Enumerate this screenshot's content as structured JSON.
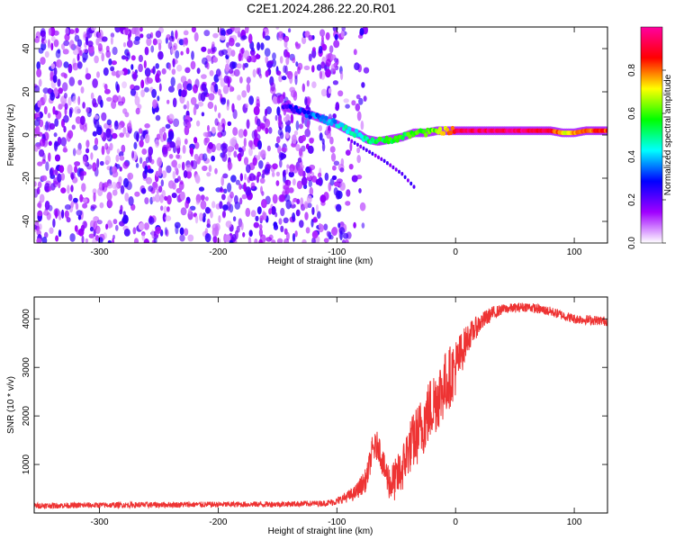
{
  "figure": {
    "title": "C2E1.2024.286.22.20.R01"
  },
  "chart_data": [
    {
      "type": "heatmap",
      "xlabel": "Height of straight line (km)",
      "ylabel": "Frequency (Hz)",
      "xlim": [
        -355,
        128
      ],
      "ylim": [
        -50,
        50
      ],
      "x_ticks": [
        -300,
        -200,
        -100,
        0,
        100
      ],
      "y_ticks": [
        -40,
        -20,
        0,
        20,
        40
      ],
      "grid": false,
      "colorbar": {
        "label": "Normalized spectral amplitude",
        "range": [
          0,
          1
        ],
        "ticks": [
          "0.0",
          "0.2",
          "0.4",
          "0.6",
          "0.8"
        ],
        "colormap": [
          "#ffffff",
          "#a000ff",
          "#0000ff",
          "#00ffff",
          "#00ff00",
          "#ffff00",
          "#ff0000",
          "#ff00a0"
        ]
      },
      "noise_region": {
        "x_range": [
          -355,
          -95
        ],
        "freq_range": [
          -50,
          50
        ],
        "typical_amplitude": 0.15
      },
      "ridge": {
        "x": [
          -145,
          -130,
          -115,
          -100,
          -90,
          -80,
          -75,
          -65,
          -55,
          -45,
          -35,
          -25,
          -15,
          -5,
          0,
          20,
          40,
          60,
          80,
          90,
          100,
          110,
          128
        ],
        "frequency": [
          13,
          11,
          8,
          5,
          2,
          0,
          -2,
          -3,
          -2,
          -1,
          1,
          1,
          2,
          2,
          2,
          2,
          2,
          2,
          2,
          1,
          1,
          2,
          2
        ],
        "amplitude": [
          0.25,
          0.3,
          0.35,
          0.4,
          0.45,
          0.45,
          0.5,
          0.55,
          0.55,
          0.55,
          0.6,
          0.6,
          0.65,
          0.8,
          0.9,
          0.95,
          0.95,
          0.95,
          0.9,
          0.7,
          0.75,
          0.8,
          0.85
        ]
      },
      "secondary_trace": {
        "x": [
          -90,
          -75,
          -60,
          -45,
          -35
        ],
        "frequency": [
          -2,
          -7,
          -12,
          -18,
          -24
        ],
        "amplitude": 0.15
      }
    },
    {
      "type": "line",
      "xlabel": "Height of straight line (km)",
      "ylabel": "SNR (10 * v/v)",
      "xlim": [
        -355,
        128
      ],
      "ylim": [
        0,
        4450
      ],
      "x_ticks": [
        -300,
        -200,
        -100,
        0,
        100
      ],
      "y_ticks": [
        1000,
        2000,
        3000,
        4000
      ],
      "grid": false,
      "series": [
        {
          "color": "#ee3333",
          "x": [
            -355,
            -250,
            -150,
            -110,
            -100,
            -95,
            -85,
            -75,
            -70,
            -65,
            -60,
            -55,
            -50,
            -45,
            -40,
            -30,
            -20,
            -10,
            0,
            10,
            20,
            30,
            40,
            60,
            80,
            100,
            128
          ],
          "y": [
            150,
            170,
            180,
            200,
            240,
            300,
            400,
            700,
            1300,
            1400,
            900,
            600,
            700,
            900,
            1300,
            1700,
            2200,
            2600,
            3000,
            3600,
            3900,
            4100,
            4200,
            4250,
            4150,
            4000,
            3950
          ],
          "noise_amplitude": [
            60,
            60,
            60,
            60,
            80,
            100,
            150,
            250,
            300,
            300,
            300,
            400,
            450,
            500,
            550,
            650,
            700,
            700,
            600,
            300,
            200,
            150,
            100,
            100,
            100,
            100,
            100
          ]
        }
      ]
    }
  ]
}
